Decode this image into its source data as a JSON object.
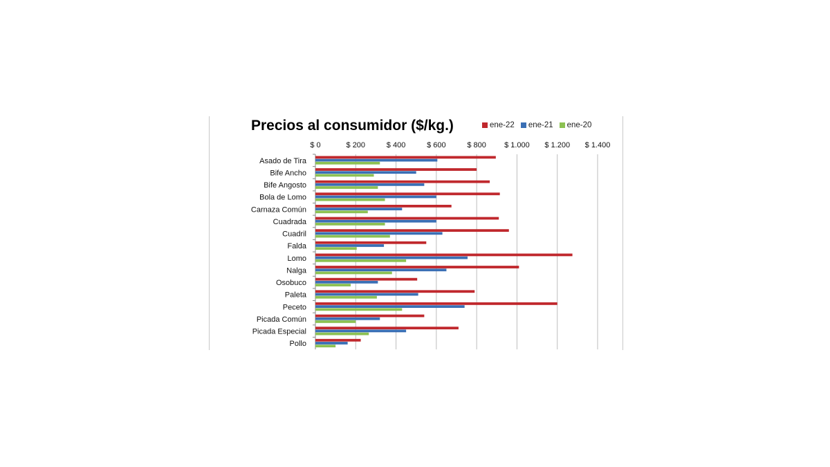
{
  "chart_data": {
    "type": "bar",
    "orientation": "horizontal",
    "title": "Precios al consumidor ($/kg.)",
    "xlabel": "",
    "ylabel": "",
    "xlim": [
      0,
      1400
    ],
    "x_ticks": [
      "$ 0",
      "$ 200",
      "$ 400",
      "$ 600",
      "$ 800",
      "$ 1.000",
      "$ 1.200",
      "$ 1.400"
    ],
    "x_tick_values": [
      0,
      200,
      400,
      600,
      800,
      1000,
      1200,
      1400
    ],
    "grid": true,
    "legend_position": "top-right",
    "categories": [
      "Asado de Tira",
      "Bife Ancho",
      "Bife Angosto",
      "Bola de Lomo",
      "Carnaza Común",
      "Cuadrada",
      "Cuadril",
      "Falda",
      "Lomo",
      "Nalga",
      "Osobuco",
      "Paleta",
      "Peceto",
      "Picada Común",
      "Picada Especial",
      "Pollo"
    ],
    "series": [
      {
        "name": "ene-22",
        "color": "#c0282d",
        "values": [
          895,
          800,
          865,
          915,
          675,
          910,
          960,
          550,
          1275,
          1010,
          505,
          790,
          1200,
          540,
          710,
          225
        ]
      },
      {
        "name": "ene-21",
        "color": "#3a6fb5",
        "values": [
          605,
          500,
          540,
          600,
          430,
          600,
          630,
          340,
          755,
          650,
          310,
          510,
          740,
          320,
          450,
          160
        ]
      },
      {
        "name": "ene-20",
        "color": "#8cc152",
        "values": [
          320,
          290,
          310,
          345,
          260,
          345,
          370,
          205,
          450,
          380,
          175,
          305,
          430,
          200,
          265,
          100
        ]
      }
    ]
  }
}
